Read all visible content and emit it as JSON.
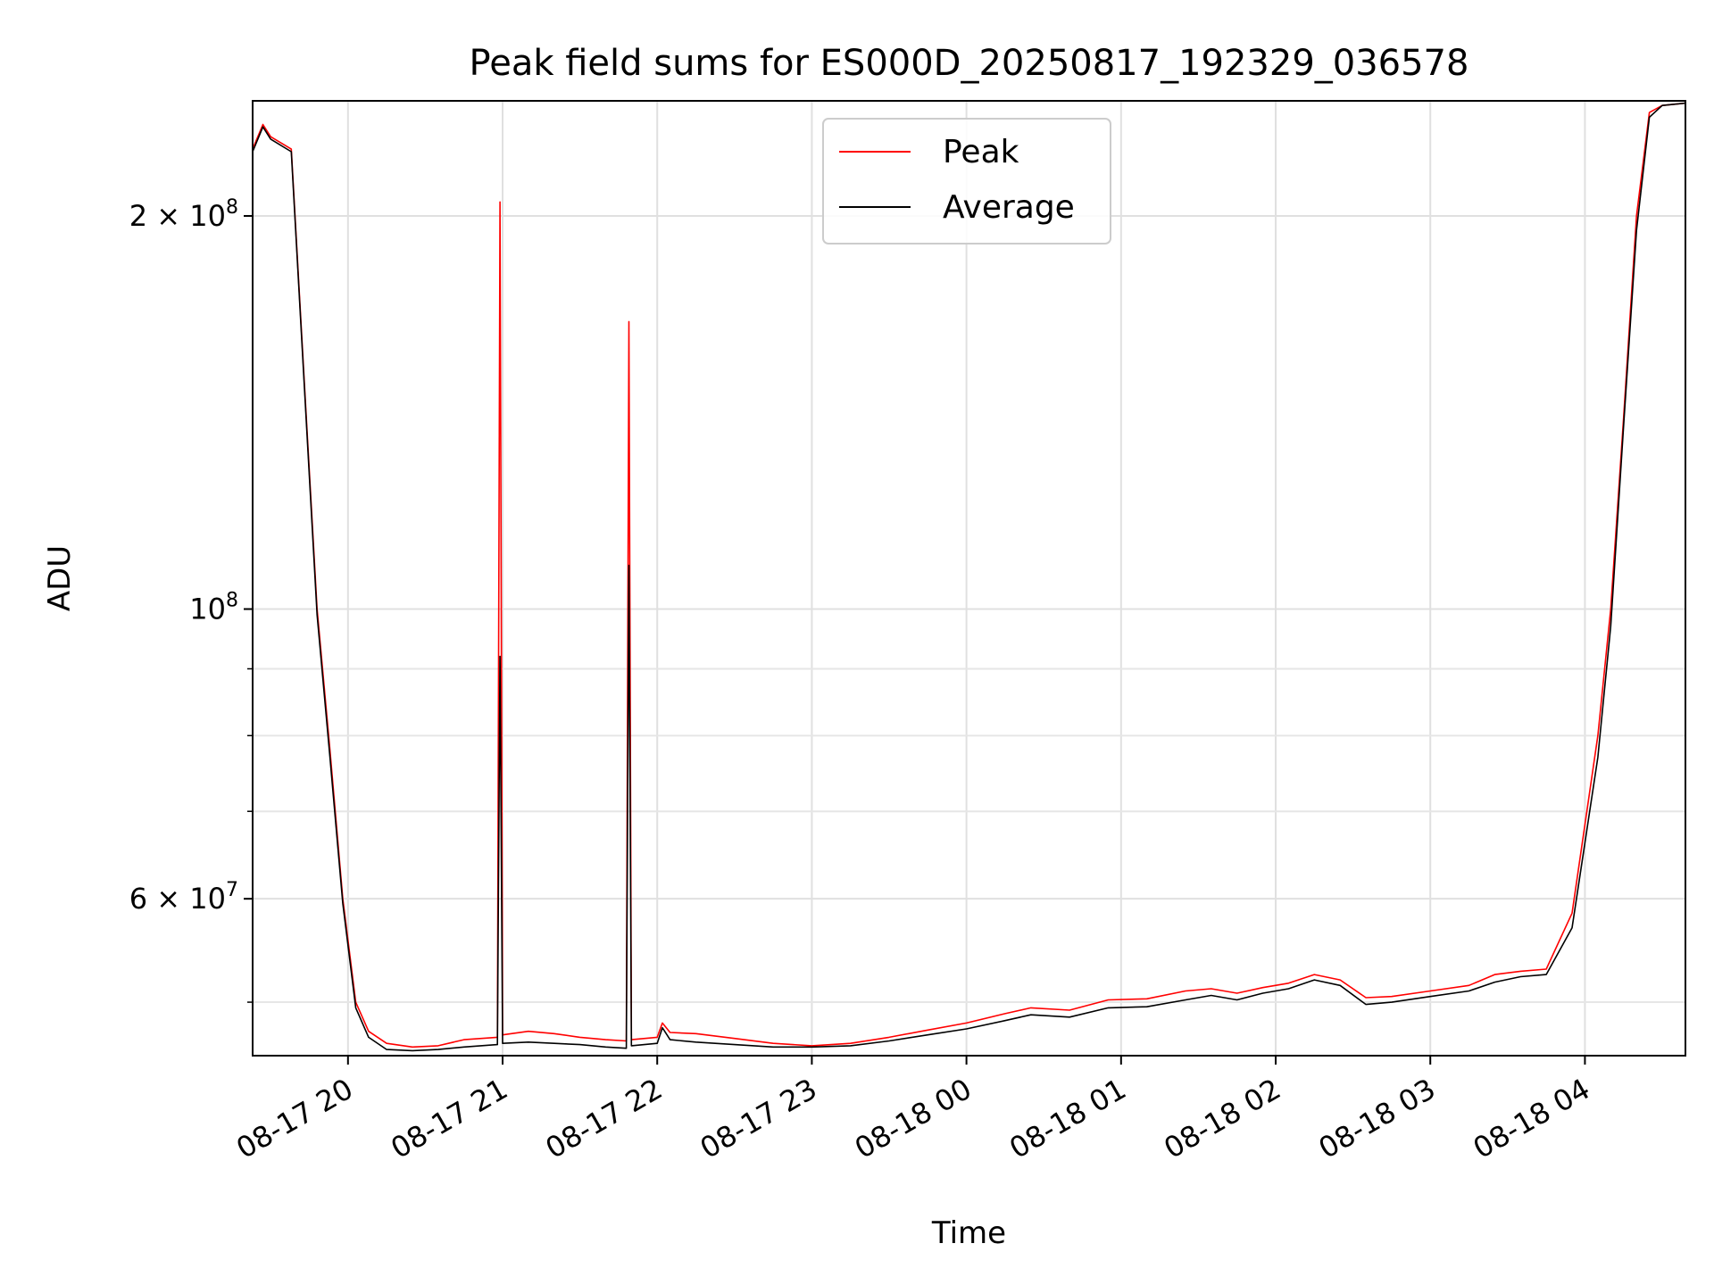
{
  "chart_data": {
    "type": "line",
    "title": "Peak field sums for ES000D_20250817_192329_036578",
    "xlabel": "Time",
    "ylabel": "ADU",
    "yscale": "log",
    "ylim": [
      45500000,
      245000000
    ],
    "xlim": [
      "2025-08-17 19:23",
      "2025-08-18 04:39"
    ],
    "grid": true,
    "legend_position": "top-center",
    "colors": {
      "Peak": "#ff0000",
      "Average": "#000000"
    },
    "x_ticks": [
      "08-17 20",
      "08-17 21",
      "08-17 22",
      "08-17 23",
      "08-18 00",
      "08-18 01",
      "08-18 02",
      "08-18 03",
      "08-18 04"
    ],
    "y_ticks": [
      {
        "value": 200000000,
        "label": "2 × 10^8"
      },
      {
        "value": 100000000,
        "label": "10^8"
      },
      {
        "value": 60000000,
        "label": "6 × 10^7"
      }
    ],
    "series": [
      {
        "name": "Peak",
        "x": [
          "2025-08-17 19:23",
          "2025-08-17 19:27",
          "2025-08-17 19:30",
          "2025-08-17 19:38",
          "2025-08-17 19:43",
          "2025-08-17 19:48",
          "2025-08-17 19:53",
          "2025-08-17 19:58",
          "2025-08-17 20:03",
          "2025-08-17 20:08",
          "2025-08-17 20:15",
          "2025-08-17 20:25",
          "2025-08-17 20:35",
          "2025-08-17 20:45",
          "2025-08-17 20:58",
          "2025-08-17 20:59",
          "2025-08-17 21:00",
          "2025-08-17 21:10",
          "2025-08-17 21:20",
          "2025-08-17 21:30",
          "2025-08-17 21:40",
          "2025-08-17 21:48",
          "2025-08-17 21:49",
          "2025-08-17 21:50",
          "2025-08-17 22:00",
          "2025-08-17 22:02",
          "2025-08-17 22:05",
          "2025-08-17 22:15",
          "2025-08-17 22:30",
          "2025-08-17 22:45",
          "2025-08-17 23:00",
          "2025-08-17 23:15",
          "2025-08-17 23:30",
          "2025-08-17 23:45",
          "2025-08-18 00:00",
          "2025-08-18 00:15",
          "2025-08-18 00:25",
          "2025-08-18 00:40",
          "2025-08-18 00:55",
          "2025-08-18 01:10",
          "2025-08-18 01:25",
          "2025-08-18 01:35",
          "2025-08-18 01:45",
          "2025-08-18 01:55",
          "2025-08-18 02:05",
          "2025-08-18 02:15",
          "2025-08-18 02:25",
          "2025-08-18 02:35",
          "2025-08-18 02:45",
          "2025-08-18 03:00",
          "2025-08-18 03:15",
          "2025-08-18 03:25",
          "2025-08-18 03:35",
          "2025-08-18 03:45",
          "2025-08-18 03:55",
          "2025-08-18 04:05",
          "2025-08-18 04:10",
          "2025-08-18 04:15",
          "2025-08-18 04:20",
          "2025-08-18 04:25",
          "2025-08-18 04:30",
          "2025-08-18 04:39"
        ],
        "values": [
          225000000,
          235000000,
          230000000,
          225000000,
          150000000,
          100000000,
          78000000,
          60000000,
          50000000,
          47500000,
          46500000,
          46200000,
          46300000,
          46800000,
          47000000,
          205000000,
          47200000,
          47500000,
          47300000,
          47000000,
          46800000,
          46700000,
          166000000,
          46800000,
          47000000,
          48200000,
          47400000,
          47300000,
          46900000,
          46500000,
          46300000,
          46500000,
          47000000,
          47600000,
          48200000,
          49000000,
          49500000,
          49300000,
          50200000,
          50300000,
          51000000,
          51200000,
          50800000,
          51300000,
          51700000,
          52500000,
          52000000,
          50400000,
          50500000,
          51000000,
          51500000,
          52500000,
          52800000,
          53000000,
          58500000,
          80000000,
          100000000,
          140000000,
          200000000,
          240000000,
          243000000,
          244000000
        ]
      },
      {
        "name": "Average",
        "x": [
          "2025-08-17 19:23",
          "2025-08-17 19:27",
          "2025-08-17 19:30",
          "2025-08-17 19:38",
          "2025-08-17 19:43",
          "2025-08-17 19:48",
          "2025-08-17 19:53",
          "2025-08-17 19:58",
          "2025-08-17 20:03",
          "2025-08-17 20:08",
          "2025-08-17 20:15",
          "2025-08-17 20:25",
          "2025-08-17 20:35",
          "2025-08-17 20:45",
          "2025-08-17 20:58",
          "2025-08-17 20:59",
          "2025-08-17 21:00",
          "2025-08-17 21:10",
          "2025-08-17 21:20",
          "2025-08-17 21:30",
          "2025-08-17 21:40",
          "2025-08-17 21:48",
          "2025-08-17 21:49",
          "2025-08-17 21:50",
          "2025-08-17 22:00",
          "2025-08-17 22:02",
          "2025-08-17 22:05",
          "2025-08-17 22:15",
          "2025-08-17 22:30",
          "2025-08-17 22:45",
          "2025-08-17 23:00",
          "2025-08-17 23:15",
          "2025-08-17 23:30",
          "2025-08-17 23:45",
          "2025-08-18 00:00",
          "2025-08-18 00:15",
          "2025-08-18 00:25",
          "2025-08-18 00:40",
          "2025-08-18 00:55",
          "2025-08-18 01:10",
          "2025-08-18 01:25",
          "2025-08-18 01:35",
          "2025-08-18 01:45",
          "2025-08-18 01:55",
          "2025-08-18 02:05",
          "2025-08-18 02:15",
          "2025-08-18 02:25",
          "2025-08-18 02:35",
          "2025-08-18 02:45",
          "2025-08-18 03:00",
          "2025-08-18 03:15",
          "2025-08-18 03:25",
          "2025-08-18 03:35",
          "2025-08-18 03:45",
          "2025-08-18 03:55",
          "2025-08-18 04:05",
          "2025-08-18 04:10",
          "2025-08-18 04:15",
          "2025-08-18 04:20",
          "2025-08-18 04:25",
          "2025-08-18 04:30",
          "2025-08-18 04:39"
        ],
        "values": [
          224000000,
          234000000,
          229000000,
          224000000,
          149000000,
          99000000,
          77000000,
          59500000,
          49500000,
          47000000,
          46000000,
          45900000,
          46000000,
          46200000,
          46400000,
          92000000,
          46500000,
          46600000,
          46500000,
          46400000,
          46200000,
          46100000,
          108000000,
          46300000,
          46500000,
          47800000,
          46800000,
          46600000,
          46400000,
          46200000,
          46200000,
          46300000,
          46700000,
          47200000,
          47700000,
          48400000,
          48900000,
          48700000,
          49500000,
          49600000,
          50200000,
          50600000,
          50200000,
          50800000,
          51200000,
          52000000,
          51500000,
          49800000,
          50000000,
          50500000,
          51000000,
          51800000,
          52300000,
          52500000,
          57000000,
          77000000,
          97000000,
          138000000,
          195000000,
          238000000,
          243000000,
          244000000
        ]
      }
    ]
  }
}
